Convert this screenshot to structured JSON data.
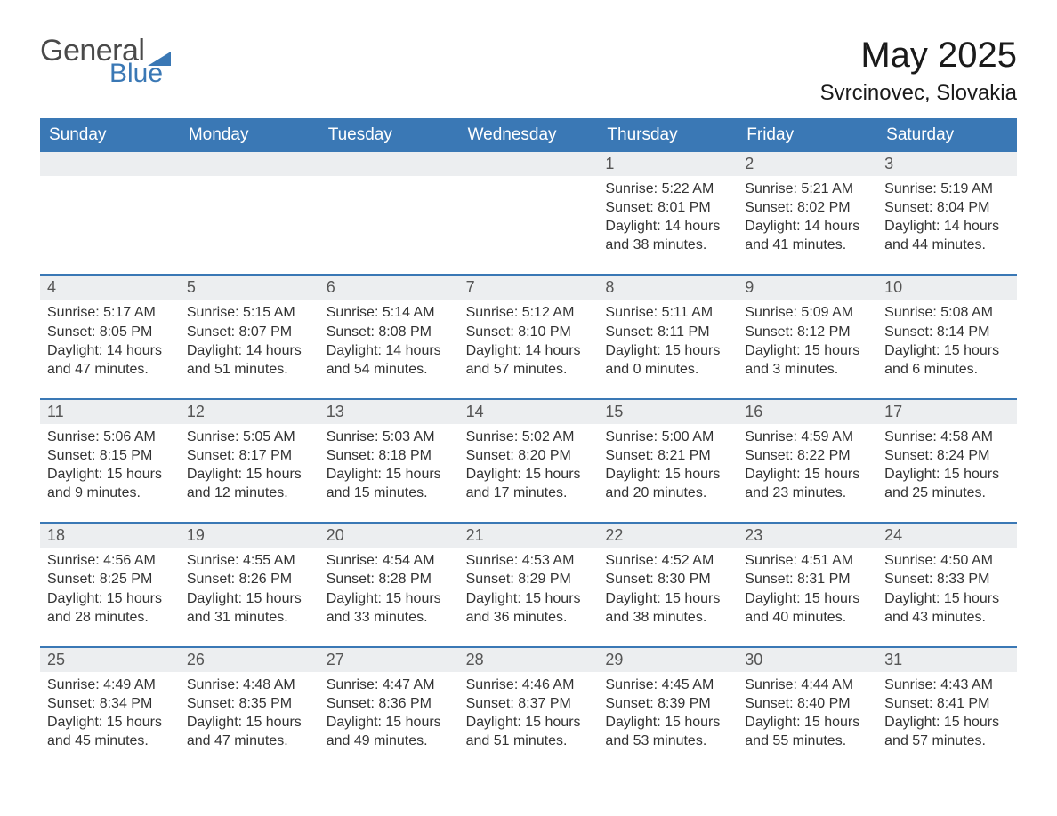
{
  "logo": {
    "text1": "General",
    "text2": "Blue",
    "tri_color": "#3a78b5"
  },
  "title": {
    "month": "May 2025",
    "location": "Svrcinovec, Slovakia"
  },
  "colors": {
    "header_bg": "#3a78b5",
    "header_text": "#ffffff",
    "daynum_bg": "#eceef0",
    "text": "#333333",
    "rule": "#3a78b5",
    "bg": "#ffffff"
  },
  "day_headers": [
    "Sunday",
    "Monday",
    "Tuesday",
    "Wednesday",
    "Thursday",
    "Friday",
    "Saturday"
  ],
  "weeks": [
    [
      null,
      null,
      null,
      null,
      {
        "d": "1",
        "sr": "Sunrise: 5:22 AM",
        "ss": "Sunset: 8:01 PM",
        "dl": "Daylight: 14 hours and 38 minutes."
      },
      {
        "d": "2",
        "sr": "Sunrise: 5:21 AM",
        "ss": "Sunset: 8:02 PM",
        "dl": "Daylight: 14 hours and 41 minutes."
      },
      {
        "d": "3",
        "sr": "Sunrise: 5:19 AM",
        "ss": "Sunset: 8:04 PM",
        "dl": "Daylight: 14 hours and 44 minutes."
      }
    ],
    [
      {
        "d": "4",
        "sr": "Sunrise: 5:17 AM",
        "ss": "Sunset: 8:05 PM",
        "dl": "Daylight: 14 hours and 47 minutes."
      },
      {
        "d": "5",
        "sr": "Sunrise: 5:15 AM",
        "ss": "Sunset: 8:07 PM",
        "dl": "Daylight: 14 hours and 51 minutes."
      },
      {
        "d": "6",
        "sr": "Sunrise: 5:14 AM",
        "ss": "Sunset: 8:08 PM",
        "dl": "Daylight: 14 hours and 54 minutes."
      },
      {
        "d": "7",
        "sr": "Sunrise: 5:12 AM",
        "ss": "Sunset: 8:10 PM",
        "dl": "Daylight: 14 hours and 57 minutes."
      },
      {
        "d": "8",
        "sr": "Sunrise: 5:11 AM",
        "ss": "Sunset: 8:11 PM",
        "dl": "Daylight: 15 hours and 0 minutes."
      },
      {
        "d": "9",
        "sr": "Sunrise: 5:09 AM",
        "ss": "Sunset: 8:12 PM",
        "dl": "Daylight: 15 hours and 3 minutes."
      },
      {
        "d": "10",
        "sr": "Sunrise: 5:08 AM",
        "ss": "Sunset: 8:14 PM",
        "dl": "Daylight: 15 hours and 6 minutes."
      }
    ],
    [
      {
        "d": "11",
        "sr": "Sunrise: 5:06 AM",
        "ss": "Sunset: 8:15 PM",
        "dl": "Daylight: 15 hours and 9 minutes."
      },
      {
        "d": "12",
        "sr": "Sunrise: 5:05 AM",
        "ss": "Sunset: 8:17 PM",
        "dl": "Daylight: 15 hours and 12 minutes."
      },
      {
        "d": "13",
        "sr": "Sunrise: 5:03 AM",
        "ss": "Sunset: 8:18 PM",
        "dl": "Daylight: 15 hours and 15 minutes."
      },
      {
        "d": "14",
        "sr": "Sunrise: 5:02 AM",
        "ss": "Sunset: 8:20 PM",
        "dl": "Daylight: 15 hours and 17 minutes."
      },
      {
        "d": "15",
        "sr": "Sunrise: 5:00 AM",
        "ss": "Sunset: 8:21 PM",
        "dl": "Daylight: 15 hours and 20 minutes."
      },
      {
        "d": "16",
        "sr": "Sunrise: 4:59 AM",
        "ss": "Sunset: 8:22 PM",
        "dl": "Daylight: 15 hours and 23 minutes."
      },
      {
        "d": "17",
        "sr": "Sunrise: 4:58 AM",
        "ss": "Sunset: 8:24 PM",
        "dl": "Daylight: 15 hours and 25 minutes."
      }
    ],
    [
      {
        "d": "18",
        "sr": "Sunrise: 4:56 AM",
        "ss": "Sunset: 8:25 PM",
        "dl": "Daylight: 15 hours and 28 minutes."
      },
      {
        "d": "19",
        "sr": "Sunrise: 4:55 AM",
        "ss": "Sunset: 8:26 PM",
        "dl": "Daylight: 15 hours and 31 minutes."
      },
      {
        "d": "20",
        "sr": "Sunrise: 4:54 AM",
        "ss": "Sunset: 8:28 PM",
        "dl": "Daylight: 15 hours and 33 minutes."
      },
      {
        "d": "21",
        "sr": "Sunrise: 4:53 AM",
        "ss": "Sunset: 8:29 PM",
        "dl": "Daylight: 15 hours and 36 minutes."
      },
      {
        "d": "22",
        "sr": "Sunrise: 4:52 AM",
        "ss": "Sunset: 8:30 PM",
        "dl": "Daylight: 15 hours and 38 minutes."
      },
      {
        "d": "23",
        "sr": "Sunrise: 4:51 AM",
        "ss": "Sunset: 8:31 PM",
        "dl": "Daylight: 15 hours and 40 minutes."
      },
      {
        "d": "24",
        "sr": "Sunrise: 4:50 AM",
        "ss": "Sunset: 8:33 PM",
        "dl": "Daylight: 15 hours and 43 minutes."
      }
    ],
    [
      {
        "d": "25",
        "sr": "Sunrise: 4:49 AM",
        "ss": "Sunset: 8:34 PM",
        "dl": "Daylight: 15 hours and 45 minutes."
      },
      {
        "d": "26",
        "sr": "Sunrise: 4:48 AM",
        "ss": "Sunset: 8:35 PM",
        "dl": "Daylight: 15 hours and 47 minutes."
      },
      {
        "d": "27",
        "sr": "Sunrise: 4:47 AM",
        "ss": "Sunset: 8:36 PM",
        "dl": "Daylight: 15 hours and 49 minutes."
      },
      {
        "d": "28",
        "sr": "Sunrise: 4:46 AM",
        "ss": "Sunset: 8:37 PM",
        "dl": "Daylight: 15 hours and 51 minutes."
      },
      {
        "d": "29",
        "sr": "Sunrise: 4:45 AM",
        "ss": "Sunset: 8:39 PM",
        "dl": "Daylight: 15 hours and 53 minutes."
      },
      {
        "d": "30",
        "sr": "Sunrise: 4:44 AM",
        "ss": "Sunset: 8:40 PM",
        "dl": "Daylight: 15 hours and 55 minutes."
      },
      {
        "d": "31",
        "sr": "Sunrise: 4:43 AM",
        "ss": "Sunset: 8:41 PM",
        "dl": "Daylight: 15 hours and 57 minutes."
      }
    ]
  ]
}
